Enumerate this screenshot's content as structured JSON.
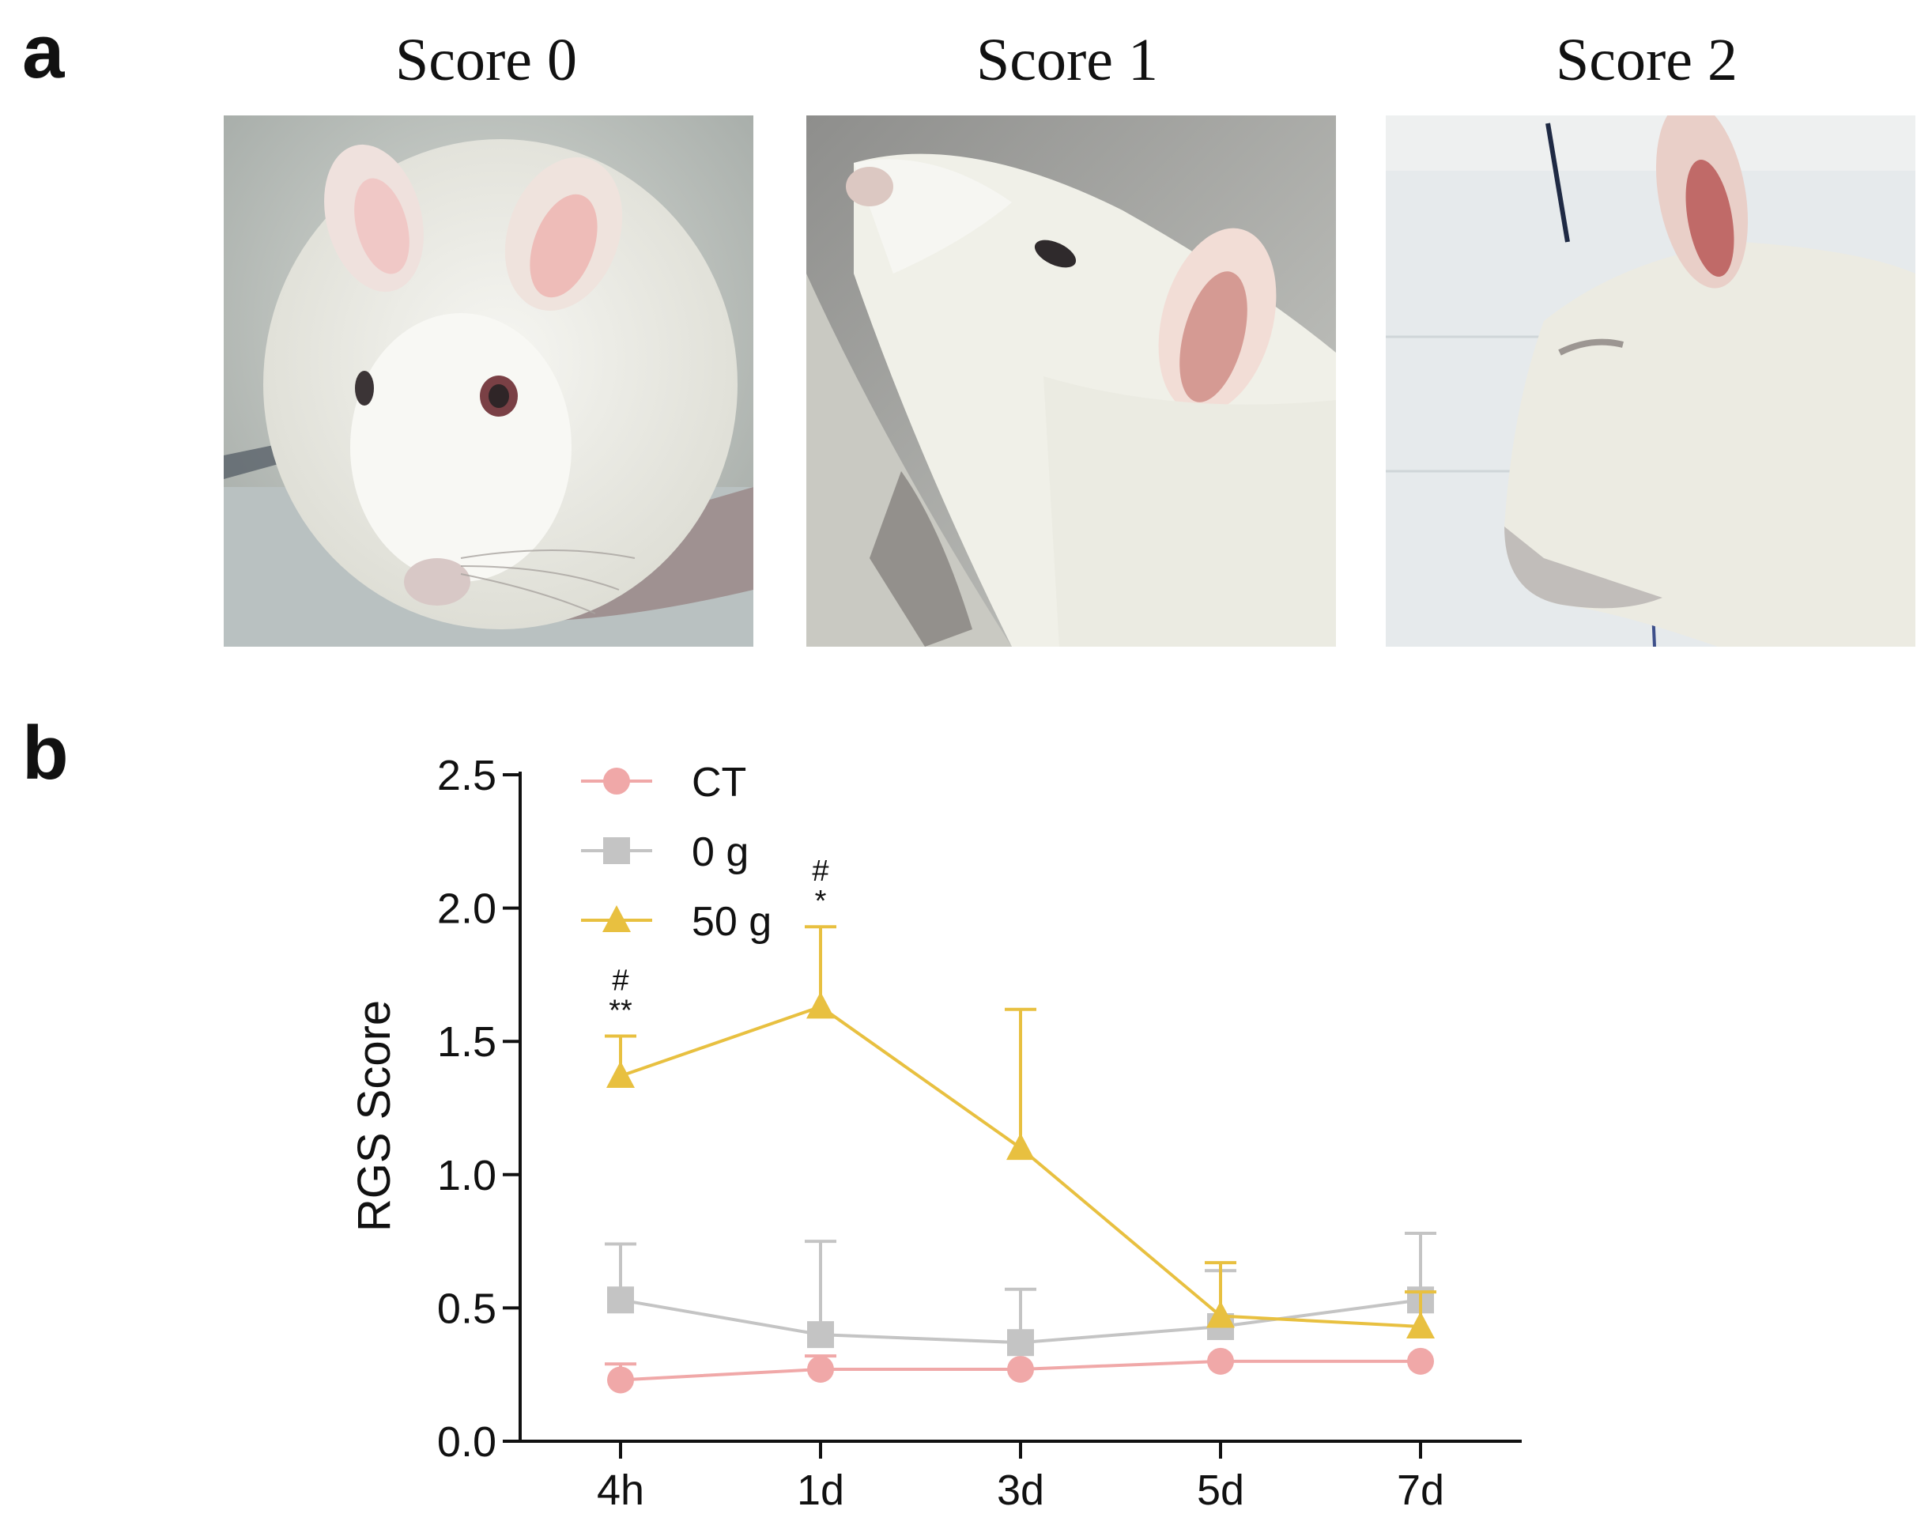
{
  "panel_a": {
    "letter": "a",
    "photos": [
      {
        "title": "Score 0",
        "icon": "rat-face-photo"
      },
      {
        "title": "Score 1",
        "icon": "rat-face-photo"
      },
      {
        "title": "Score 2",
        "icon": "rat-face-photo"
      }
    ]
  },
  "panel_b": {
    "letter": "b"
  },
  "chart_data": {
    "type": "line",
    "title": "",
    "xlabel": "",
    "ylabel": "RGS Score",
    "categories": [
      "4h",
      "1d",
      "3d",
      "5d",
      "7d"
    ],
    "ylim": [
      0,
      2.5
    ],
    "yticks": [
      "0.0",
      "0.5",
      "1.0",
      "1.5",
      "2.0",
      "2.5"
    ],
    "legend_position": "top-left",
    "series": [
      {
        "name": "CT",
        "marker": "circle",
        "color": "#f0a8a8",
        "values": [
          0.23,
          0.27,
          0.27,
          0.3,
          0.3
        ],
        "error": [
          0.06,
          0.05,
          0.0,
          0.0,
          0.0
        ]
      },
      {
        "name": "0 g",
        "marker": "square",
        "color": "#c4c4c4",
        "values": [
          0.53,
          0.4,
          0.37,
          0.43,
          0.53
        ],
        "error": [
          0.21,
          0.35,
          0.2,
          0.21,
          0.25
        ]
      },
      {
        "name": "50 g",
        "marker": "triangle",
        "color": "#e8c040",
        "values": [
          1.37,
          1.63,
          1.1,
          0.47,
          0.43
        ],
        "error": [
          0.15,
          0.3,
          0.52,
          0.2,
          0.13
        ]
      }
    ],
    "annotations": [
      {
        "category": "4h",
        "lines": [
          "#",
          "**"
        ]
      },
      {
        "category": "1d",
        "lines": [
          "#",
          "*"
        ]
      }
    ]
  }
}
